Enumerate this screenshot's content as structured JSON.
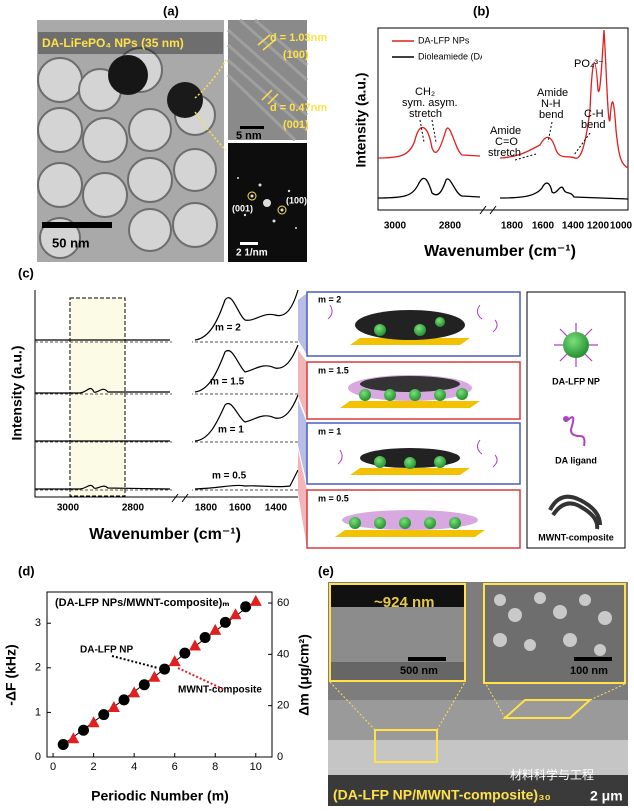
{
  "panel_a": {
    "label": "(a)",
    "title": "DA-LiFePO₄ NPs (35 nm)",
    "scale_main": "50 nm",
    "d1": "d = 1.03nm",
    "plane1": "(100)",
    "d2": "d = 0.47nm",
    "plane2": "(001)",
    "scale_hrtem": "5 nm",
    "fft_spot1": "(001)",
    "fft_spot2": "(100)",
    "scale_fft": "2 1/nm"
  },
  "panel_b": {
    "label": "(b)",
    "legend": [
      "DA-LFP NPs",
      "Dioleamiede (DA)"
    ],
    "annotations": [
      [
        "CH₂",
        "sym. asym.",
        "stretch"
      ],
      [
        "Amide",
        "C=O",
        "stretch"
      ],
      [
        "Amide",
        "N-H",
        "bend"
      ],
      [
        "C-H",
        "bend"
      ],
      [
        "PO₄³⁻"
      ]
    ],
    "xticks": [
      "3000",
      "2800",
      "1800",
      "1600",
      "1400",
      "1200",
      "1000"
    ],
    "xlabel": "Wavenumber (cm⁻¹)",
    "ylabel": "Intensity (a.u.)"
  },
  "panel_c": {
    "label": "(c)",
    "traces": [
      "m = 2",
      "m = 1.5",
      "m = 1",
      "m = 0.5"
    ],
    "xticks": [
      "3000",
      "2800",
      "1800",
      "1600",
      "1400"
    ],
    "xlabel": "Wavenumber (cm⁻¹)",
    "ylabel": "Intensity (a.u.)",
    "schematics": [
      "m = 2",
      "m = 1.5",
      "m = 1",
      "m = 0.5"
    ],
    "legend": [
      "DA-LFP NP",
      "DA ligand",
      "MWNT-composite"
    ]
  },
  "chart_data": {
    "type": "scatter",
    "label": "(d)",
    "title": "(DA-LFP NPs/MWNT-composite)ₘ",
    "xlabel": "Periodic Number (m)",
    "ylabel": "-ΔF (kHz)",
    "y2label": "Δm (μg/cm²)",
    "xlim": [
      -0.3,
      10.8
    ],
    "xticks": [
      0,
      2,
      4,
      6,
      8,
      10
    ],
    "ylim": [
      0,
      3.7
    ],
    "yticks": [
      0,
      1,
      2,
      3
    ],
    "y2lim": [
      0,
      64.3
    ],
    "y2ticks": [
      0,
      20,
      40,
      60
    ],
    "series": [
      {
        "name": "DA-LFP NP",
        "color": "#000000",
        "marker": "circle",
        "x": [
          0.5,
          1.5,
          2.5,
          3.5,
          4.5,
          5.5,
          6.5,
          7.5,
          8.5,
          9.5
        ],
        "values": [
          0.28,
          0.6,
          0.95,
          1.28,
          1.62,
          1.97,
          2.33,
          2.68,
          3.02,
          3.37
        ]
      },
      {
        "name": "MWNT-composite",
        "color": "#e02020",
        "marker": "triangle",
        "x": [
          1,
          2,
          3,
          4,
          5,
          6,
          7,
          8,
          9,
          10
        ],
        "values": [
          0.42,
          0.78,
          1.12,
          1.45,
          1.8,
          2.15,
          2.5,
          2.85,
          3.2,
          3.5
        ]
      }
    ]
  },
  "panel_e": {
    "label": "(e)",
    "thickness": "~924 nm",
    "scale_left": "500 nm",
    "scale_right": "100 nm",
    "caption": "(DA-LFP NP/MWNT-composite)₃₀",
    "scale_main": "2 μm",
    "watermark": "材料科学与工程"
  }
}
